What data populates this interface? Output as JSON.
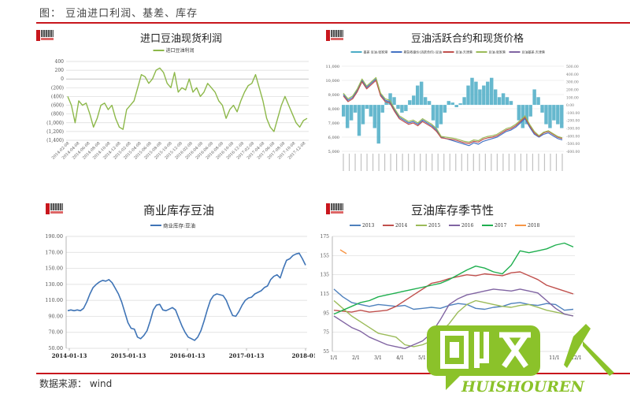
{
  "header": {
    "figure_title": "图：  豆油进口利润、基差、库存"
  },
  "footer": {
    "source": "数据来源： wind"
  },
  "watermark": {
    "text_cn": "回收人",
    "text_en": "HUISHOUREN",
    "color": "#8bc22a"
  },
  "panels": [
    {
      "title": "进口豆油现货利润",
      "legend": [
        "进口豆油利润"
      ]
    },
    {
      "title": "豆油活跃合约和现货价格",
      "legend": [
        "基差 豆油:张家港",
        "期货收盘价(活跃合约):豆油",
        "豆油:天津港",
        "豆油:张家港",
        "豆油基差:天津港"
      ]
    },
    {
      "title": "商业库存豆油",
      "legend": [
        "商业库存:豆油"
      ]
    },
    {
      "title": "豆油库存季节性",
      "legend": [
        "2013",
        "2014",
        "2015",
        "2016",
        "2017",
        "2018"
      ]
    }
  ],
  "chart_data": [
    {
      "type": "line",
      "title": "进口豆油现货利润",
      "series": [
        {
          "name": "进口豆油利润",
          "color": "#8db84a",
          "values": [
            -400,
            -600,
            -1000,
            -500,
            -600,
            -550,
            -800,
            -1100,
            -900,
            -600,
            -550,
            -700,
            -600,
            -900,
            -1100,
            -1150,
            -700,
            -600,
            -500,
            -200,
            100,
            50,
            -100,
            0,
            200,
            250,
            150,
            -100,
            -200,
            150,
            -300,
            -200,
            -250,
            0,
            -300,
            -200,
            -400,
            -300,
            -100,
            -200,
            -300,
            -500,
            -600,
            -900,
            -700,
            -600,
            -750,
            -500,
            -300,
            -150,
            -100,
            100,
            -200,
            -500,
            -900,
            -1100,
            -1200,
            -900,
            -600,
            -400,
            -600,
            -800,
            -1000,
            -1100,
            -950,
            -900
          ]
        }
      ],
      "xlabels": [
        "2014-02-08",
        "2014-04-08",
        "2014-06-08",
        "2014-08-08",
        "2014-10-08",
        "2014-12-08",
        "2015-02-08",
        "2015-04-08",
        "2015-06-08",
        "2015-08-08",
        "2015-10-08",
        "2015-12-08",
        "2016-02-08",
        "2016-04-08",
        "2016-06-08",
        "2016-08-08",
        "2016-10-08",
        "2016-12-08",
        "2017-02-08",
        "2017-04-08",
        "2017-06-08",
        "2017-08-08",
        "2017-10-08",
        "2017-12-08"
      ],
      "yticks": [
        "400",
        "200",
        "0",
        "(200)",
        "(400)",
        "(600)",
        "(800)",
        "(1,000)",
        "(1,200)",
        "(1,400)"
      ],
      "ylim": [
        -1400,
        400
      ]
    },
    {
      "type": "line+bar",
      "title": "豆油活跃合约和现货价格",
      "left_yticks": [
        "11,000",
        "10,000",
        "9,000",
        "8,000",
        "7,000",
        "6,000",
        "5,000"
      ],
      "right_yticks": [
        "500.00",
        "400.00",
        "300.00",
        "200.00",
        "100.00",
        "0.00",
        "-100.00",
        "-200.00",
        "-300.00",
        "-400.00",
        "-500.00",
        "-600.00"
      ],
      "left_ylim": [
        5000,
        11000
      ],
      "right_ylim": [
        -600,
        500
      ],
      "bars": {
        "name": "基差 豆油:张家港",
        "color": "#4bacc6",
        "values": [
          -150,
          -300,
          -200,
          -100,
          -400,
          -250,
          -50,
          -150,
          -300,
          -500,
          -100,
          50,
          150,
          100,
          -50,
          -100,
          -80,
          60,
          120,
          250,
          300,
          100,
          50,
          -200,
          -300,
          -250,
          -100,
          50,
          30,
          -30,
          20,
          100,
          250,
          350,
          300,
          200,
          250,
          300,
          350,
          200,
          100,
          150,
          100,
          50,
          0,
          -200,
          -300,
          -250,
          -150,
          200,
          100,
          -100,
          -250,
          -300,
          -200,
          -250,
          -300
        ]
      },
      "series": [
        {
          "name": "期货收盘价(活跃合约):豆油",
          "color": "#4472c4",
          "values": [
            9000,
            8600,
            8800,
            9300,
            10000,
            9500,
            9800,
            10100,
            9000,
            8600,
            8500,
            7900,
            7400,
            7200,
            7000,
            7100,
            6900,
            7200,
            7000,
            6800,
            6500,
            6000,
            5900,
            5800,
            5700,
            5600,
            5500,
            5400,
            5600,
            5500,
            5700,
            5800,
            5900,
            6000,
            6200,
            6400,
            6500,
            6700,
            7000,
            7300,
            6700,
            6200,
            6000,
            6200,
            6300,
            6100,
            5900,
            5800
          ]
        },
        {
          "name": "豆油:天津港",
          "color": "#c0504d",
          "values": [
            8900,
            8500,
            8700,
            9200,
            9900,
            9400,
            9700,
            10000,
            8900,
            8500,
            8400,
            7800,
            7300,
            7100,
            6900,
            7000,
            6800,
            7100,
            6900,
            6700,
            6400,
            5950,
            5900,
            5850,
            5800,
            5700,
            5600,
            5550,
            5700,
            5650,
            5850,
            5950,
            6000,
            6100,
            6300,
            6500,
            6600,
            6800,
            7100,
            7400,
            6800,
            6300,
            6050,
            6300,
            6400,
            6200,
            6000,
            5900
          ]
        },
        {
          "name": "豆油:张家港",
          "color": "#9bbb59",
          "values": [
            9100,
            8700,
            8900,
            9400,
            10100,
            9600,
            9900,
            10200,
            9100,
            8700,
            8600,
            8000,
            7500,
            7300,
            7100,
            7200,
            7000,
            7300,
            7100,
            6900,
            6600,
            6050,
            6000,
            5950,
            5900,
            5800,
            5700,
            5650,
            5800,
            5750,
            5950,
            6050,
            6100,
            6200,
            6400,
            6600,
            6700,
            6900,
            7200,
            7500,
            6900,
            6400,
            6100,
            6350,
            6450,
            6250,
            6050,
            5950
          ]
        }
      ]
    },
    {
      "type": "line",
      "title": "商业库存豆油",
      "series": [
        {
          "name": "商业库存:豆油",
          "color": "#3f74b6",
          "values": [
            97,
            98,
            97,
            98,
            97,
            100,
            108,
            118,
            126,
            130,
            133,
            135,
            134,
            136,
            132,
            125,
            118,
            108,
            95,
            82,
            75,
            74,
            64,
            62,
            66,
            72,
            84,
            98,
            104,
            105,
            98,
            97,
            99,
            101,
            98,
            88,
            78,
            70,
            64,
            62,
            60,
            64,
            72,
            84,
            98,
            110,
            116,
            118,
            117,
            116,
            110,
            100,
            91,
            90,
            96,
            104,
            110,
            113,
            114,
            118,
            120,
            122,
            126,
            128,
            136,
            140,
            142,
            138,
            150,
            160,
            162,
            166,
            168,
            169,
            162,
            154
          ]
        }
      ],
      "xlabels": [
        "2014-01-13",
        "2015-01-13",
        "2016-01-13",
        "2017-01-13",
        "2018-01-"
      ],
      "yticks": [
        "190.00",
        "170.00",
        "150.00",
        "130.00",
        "110.00",
        "90.00",
        "70.00",
        "50.00"
      ],
      "ylim": [
        50,
        190
      ]
    },
    {
      "type": "line",
      "title": "豆油库存季节性",
      "xlabels": [
        "1/1",
        "2/1",
        "3/1",
        "4/1",
        "5/1",
        "6/1",
        "7/1",
        "8/1",
        "9/1",
        "10/1",
        "11/1",
        "12/1"
      ],
      "yticks": [
        "175",
        "155",
        "135",
        "115",
        "95",
        "75",
        "55"
      ],
      "ylim": [
        55,
        175
      ],
      "series": [
        {
          "name": "2013",
          "color": "#4f81bd",
          "values": [
            120,
            112,
            106,
            104,
            102,
            104,
            103,
            102,
            103,
            99,
            100,
            101,
            100,
            103,
            105,
            104,
            100,
            99,
            101,
            102,
            105,
            106,
            104,
            103,
            105,
            104,
            98,
            99
          ]
        },
        {
          "name": "2014",
          "color": "#c0504d",
          "values": [
            98,
            97,
            96,
            98,
            96,
            97,
            98,
            102,
            108,
            114,
            120,
            126,
            128,
            131,
            133,
            135,
            134,
            136,
            135,
            134,
            137,
            138,
            134,
            130,
            124,
            121,
            118,
            115
          ]
        },
        {
          "name": "2015",
          "color": "#9bbb59",
          "values": [
            108,
            100,
            92,
            86,
            80,
            74,
            72,
            70,
            62,
            60,
            62,
            66,
            75,
            84,
            96,
            104,
            108,
            106,
            104,
            102,
            101,
            103,
            104,
            101,
            98,
            96,
            94,
            92
          ]
        },
        {
          "name": "2016",
          "color": "#8064a2",
          "values": [
            92,
            86,
            80,
            76,
            70,
            66,
            62,
            60,
            58,
            62,
            66,
            74,
            88,
            104,
            110,
            114,
            116,
            118,
            120,
            119,
            118,
            120,
            118,
            116,
            108,
            100,
            94,
            92
          ]
        },
        {
          "name": "2017",
          "color": "#1faf4f",
          "values": [
            94,
            98,
            102,
            106,
            108,
            112,
            114,
            116,
            118,
            120,
            122,
            124,
            126,
            130,
            135,
            140,
            144,
            142,
            138,
            136,
            145,
            160,
            158,
            160,
            162,
            166,
            168,
            164
          ]
        },
        {
          "name": "2018",
          "color": "#f79646",
          "values": [
            161,
            159,
            157
          ]
        }
      ]
    }
  ]
}
